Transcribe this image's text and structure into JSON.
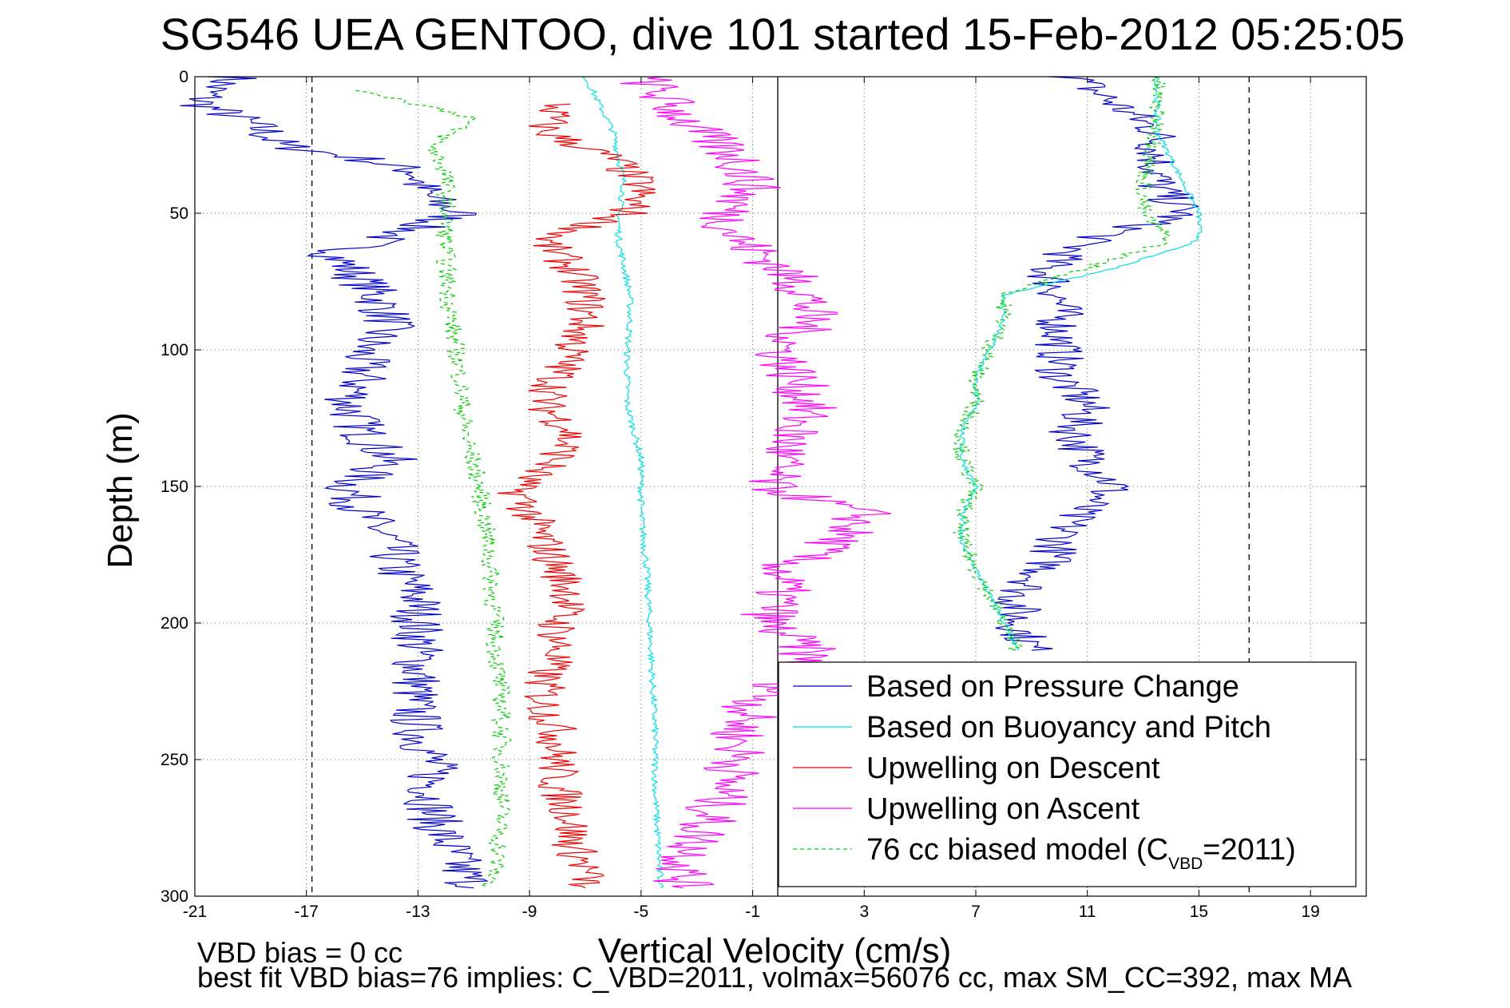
{
  "chart_data": {
    "type": "line",
    "title": "SG546 UEA GENTOO, dive 101 started 15-Feb-2012 05:25:05",
    "xlabel": "Vertical Velocity (cm/s)",
    "ylabel": "Depth (m)",
    "xlim": [
      -21,
      21
    ],
    "ylim": [
      300,
      0
    ],
    "y_reversed": true,
    "x_ticks": [
      -21,
      -17,
      -13,
      -9,
      -5,
      -1,
      3,
      7,
      11,
      15,
      19
    ],
    "y_ticks": [
      0,
      50,
      100,
      150,
      200,
      250,
      300
    ],
    "grid": true,
    "legend_position": "bottom-right",
    "vertical_reference_lines": [
      {
        "x": -16.8,
        "style": "dashed"
      },
      {
        "x": -0.1,
        "style": "solid"
      },
      {
        "x": 16.8,
        "style": "dashed"
      }
    ],
    "series": [
      {
        "name": "Based on Pressure Change",
        "color": "#0000cc",
        "style": "solid",
        "depth": [
          0,
          5,
          10,
          15,
          20,
          25,
          30,
          35,
          40,
          45,
          50,
          55,
          60,
          65,
          70,
          80,
          90,
          100,
          110,
          120,
          130,
          140,
          150,
          160,
          170,
          180,
          190,
          200,
          210,
          220,
          230,
          240,
          250,
          260,
          270,
          280,
          290,
          297
        ],
        "velocity": [
          -19.5,
          -20.5,
          -20.8,
          -19.5,
          -18.5,
          -18,
          -15,
          -13,
          -13,
          -12.5,
          -11.5,
          -13,
          -14.5,
          -16,
          -15.5,
          -14.5,
          -14,
          -15,
          -15,
          -15.5,
          -15,
          -14,
          -15.5,
          -15,
          -14,
          -13.8,
          -13,
          -13,
          -13,
          -13,
          -13.2,
          -13,
          -12.5,
          -12.5,
          -12.5,
          -12,
          -11.5,
          -11
        ],
        "ascent_depth": [
          0,
          20,
          40,
          50,
          60,
          70,
          80,
          90,
          100,
          110,
          120,
          130,
          140,
          150,
          160,
          170,
          180,
          190,
          200,
          210
        ],
        "ascent_velocity": [
          10.5,
          13.5,
          13.5,
          14.5,
          11,
          9.5,
          10,
          10,
          10,
          10,
          11,
          10.5,
          11,
          12,
          10.5,
          10,
          9.5,
          8.5,
          8.5,
          9
        ]
      },
      {
        "name": "Based on Buoyancy and Pitch",
        "color": "#00e0e0",
        "style": "solid",
        "depth": [
          0,
          10,
          20,
          30,
          40,
          50,
          60,
          70,
          80,
          90,
          100,
          120,
          140,
          160,
          180,
          200,
          220,
          240,
          260,
          280,
          297
        ],
        "velocity": [
          -7,
          -6.5,
          -6,
          -5.8,
          -5.6,
          -5.8,
          -5.8,
          -5.6,
          -5.4,
          -5.4,
          -5.5,
          -5.5,
          -5,
          -5,
          -4.8,
          -4.7,
          -4.6,
          -4.5,
          -4.5,
          -4.4,
          -4.3
        ],
        "ascent_depth": [
          0,
          20,
          40,
          50,
          60,
          70,
          80,
          90,
          100,
          110,
          120,
          130,
          140,
          150,
          160,
          170,
          180,
          190,
          200,
          210
        ],
        "ascent_velocity": [
          13.5,
          13.5,
          14.5,
          15,
          15,
          12,
          8,
          8,
          7.5,
          7,
          7,
          6.5,
          6.5,
          7,
          6.5,
          6.5,
          7,
          7.5,
          8,
          8.5
        ]
      },
      {
        "name": "Upwelling on Descent",
        "color": "#ee0000",
        "style": "solid",
        "depth": [
          10,
          20,
          30,
          40,
          50,
          60,
          70,
          80,
          90,
          100,
          110,
          120,
          130,
          140,
          150,
          160,
          170,
          180,
          190,
          200,
          210,
          220,
          230,
          240,
          250,
          260,
          270,
          280,
          290,
          297
        ],
        "velocity": [
          -8,
          -8.5,
          -6,
          -5,
          -5.5,
          -8.5,
          -7.5,
          -7,
          -7,
          -7.5,
          -8,
          -8.5,
          -7.5,
          -8,
          -9.5,
          -9,
          -8.5,
          -8,
          -7.5,
          -8,
          -8,
          -8.5,
          -8.5,
          -8,
          -8,
          -8,
          -7.5,
          -7.5,
          -7,
          -7
        ]
      },
      {
        "name": "Upwelling on Ascent",
        "color": "#ff00ff",
        "style": "solid",
        "depth": [
          0,
          10,
          20,
          30,
          40,
          50,
          60,
          70,
          80,
          90,
          100,
          110,
          120,
          130,
          140,
          150,
          160,
          170,
          180,
          190,
          200,
          210,
          220,
          230,
          240,
          250,
          260,
          270,
          280,
          290,
          297
        ],
        "velocity": [
          -5,
          -4,
          -3,
          -1.5,
          -1,
          -2,
          -1.5,
          0,
          1,
          1,
          0,
          0.5,
          1,
          0.5,
          0,
          -0.5,
          3,
          2,
          0,
          0,
          -0.5,
          1,
          0.5,
          -1,
          -1.5,
          -1.5,
          -2,
          -2.5,
          -3,
          -3.5,
          -3.5
        ]
      },
      {
        "name": "76 cc biased model (C_VBD=2011)",
        "legend_main": "76 cc biased model (C",
        "legend_sub": "VBD",
        "legend_tail": "=2011)",
        "color": "#00cc00",
        "style": "dashed",
        "depth": [
          5,
          15,
          25,
          35,
          45,
          55,
          70,
          90,
          110,
          130,
          150,
          170,
          190,
          210,
          230,
          250,
          270,
          290,
          297
        ],
        "velocity": [
          -15,
          -11,
          -12.5,
          -12,
          -12,
          -12,
          -12,
          -11.8,
          -11.5,
          -11.3,
          -10.8,
          -10.5,
          -10.3,
          -10.2,
          -10,
          -10,
          -10,
          -10.2,
          -10.5
        ],
        "ascent_depth": [
          0,
          20,
          40,
          50,
          60,
          70,
          80,
          90,
          100,
          110,
          120,
          130,
          140,
          150,
          160,
          170,
          180,
          190,
          200,
          210
        ],
        "ascent_velocity": [
          13.5,
          13.5,
          13,
          13,
          14,
          11,
          8,
          8,
          7.5,
          7,
          7,
          6.5,
          6.5,
          7,
          6.5,
          6.5,
          7,
          7.5,
          8,
          8.5
        ]
      }
    ]
  },
  "notes": {
    "line1": "VBD bias = 0 cc",
    "line2": "best fit VBD bias=76 implies: C_VBD=2011, volmax=56076 cc, max SM_CC=392, max MA"
  }
}
